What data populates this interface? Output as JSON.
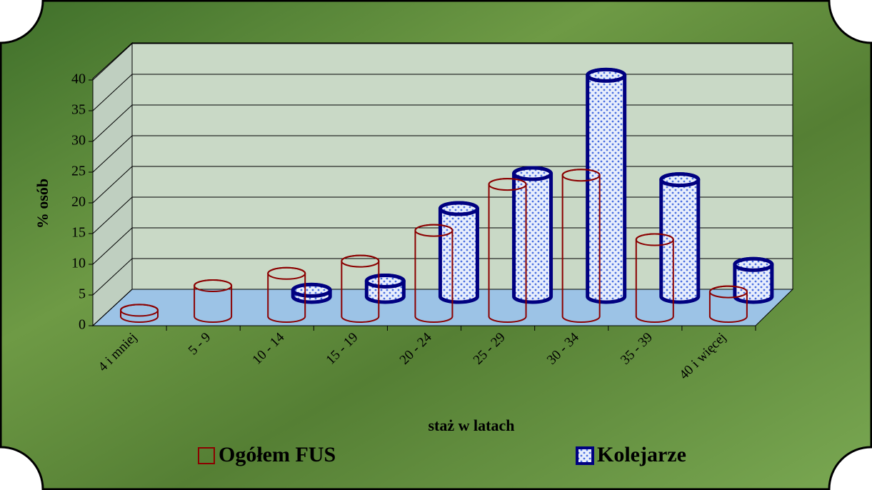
{
  "chart_data": {
    "type": "bar3d",
    "y_axis_label": "% osób",
    "x_axis_label": "staż w latach",
    "categories": [
      "4 i mniej",
      "5 - 9",
      "10 - 14",
      "15 - 19",
      "20 - 24",
      "25 - 29",
      "30 - 34",
      "35 - 39",
      "40 i więcej"
    ],
    "series": [
      {
        "name": "Ogółem FUS",
        "color": "#8b0000",
        "values": [
          1,
          5,
          7,
          9,
          14,
          21.5,
          23,
          12.5,
          4
        ]
      },
      {
        "name": "Kolejarze",
        "color": "#000080",
        "values": [
          null,
          null,
          1,
          2.5,
          14.3,
          20,
          36,
          19,
          5.2
        ]
      }
    ],
    "ylim": [
      0,
      40
    ],
    "yticks": [
      0,
      5,
      10,
      15,
      20,
      25,
      30,
      35,
      40
    ],
    "grid": true
  }
}
